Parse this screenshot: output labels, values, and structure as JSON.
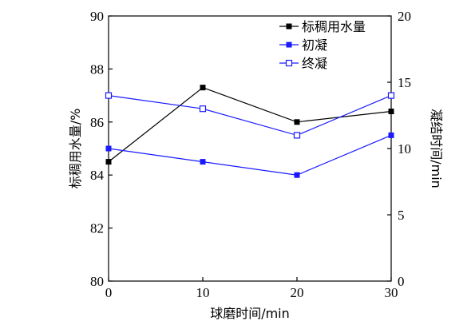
{
  "chart_data": {
    "type": "line",
    "x": [
      0,
      10,
      20,
      30
    ],
    "xlabel": "球磨时间/min",
    "xlim": [
      0,
      30
    ],
    "xticks": [
      "0",
      "10",
      "20",
      "30"
    ],
    "ylabel_left": "标稠用水量/%",
    "ylim_left": [
      80,
      90
    ],
    "yticks_left": [
      "80",
      "82",
      "84",
      "86",
      "88",
      "90"
    ],
    "ylabel_right": "凝结时间/min",
    "ylim_right": [
      0,
      20
    ],
    "yticks_right": [
      "0",
      "5",
      "10",
      "15",
      "20"
    ],
    "grid": false,
    "legend_position": "top-right",
    "series": [
      {
        "name": "标稠用水量",
        "axis": "left",
        "values": [
          84.5,
          87.3,
          86.0,
          86.4
        ],
        "color": "#000000",
        "marker": "filled-square"
      },
      {
        "name": "初凝",
        "axis": "right",
        "values": [
          10,
          9,
          8,
          11
        ],
        "color": "#1a1aff",
        "marker": "filled-square"
      },
      {
        "name": "终凝",
        "axis": "right",
        "values": [
          14,
          13,
          11,
          14
        ],
        "color": "#1a1aff",
        "marker": "open-square"
      }
    ]
  }
}
